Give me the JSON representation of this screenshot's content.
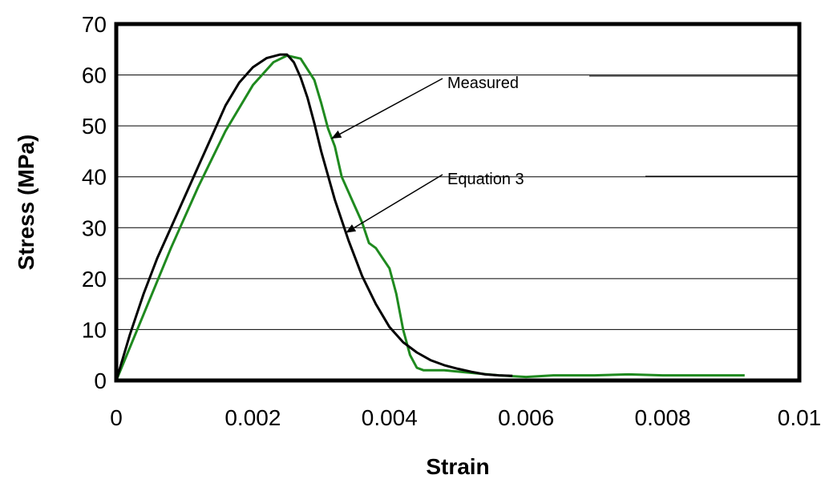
{
  "chart_data": {
    "type": "line",
    "title": "",
    "xlabel": "Strain",
    "ylabel": "Stress (MPa)",
    "xlim": [
      0,
      0.01
    ],
    "ylim": [
      0,
      70
    ],
    "xticks": [
      "0",
      "0.002",
      "0.004",
      "0.006",
      "0.008",
      "0.01"
    ],
    "yticks": [
      "0",
      "10",
      "20",
      "30",
      "40",
      "50",
      "60",
      "70"
    ],
    "grid": "horizontal",
    "legend": "none",
    "series": [
      {
        "name": "Measured",
        "color": "#1f8a1f",
        "x": [
          0,
          0.0004,
          0.0008,
          0.0012,
          0.0016,
          0.002,
          0.0023,
          0.0025,
          0.0027,
          0.0029,
          0.003,
          0.0031,
          0.0032,
          0.0033,
          0.0035,
          0.0036,
          0.0037,
          0.0038,
          0.0039,
          0.004,
          0.0041,
          0.0042,
          0.0043,
          0.0044,
          0.0045,
          0.0046,
          0.0048,
          0.0052,
          0.0056,
          0.006,
          0.0064,
          0.007,
          0.0075,
          0.008,
          0.0092
        ],
        "y": [
          0,
          13,
          26,
          38,
          49,
          58,
          62.5,
          63.8,
          63.2,
          59,
          54.5,
          49.5,
          46,
          40,
          34,
          31,
          27,
          26,
          24,
          22,
          17,
          10,
          5,
          2.5,
          2,
          2,
          2,
          1.5,
          1,
          0.7,
          1,
          1,
          1.2,
          1,
          1
        ]
      },
      {
        "name": "Equation 3",
        "color": "#000000",
        "x": [
          0,
          0.0002,
          0.0004,
          0.0006,
          0.0008,
          0.001,
          0.0012,
          0.0014,
          0.0016,
          0.0018,
          0.002,
          0.0022,
          0.0024,
          0.0025,
          0.0026,
          0.0027,
          0.0028,
          0.0029,
          0.003,
          0.0032,
          0.0034,
          0.0036,
          0.0038,
          0.004,
          0.0042,
          0.0044,
          0.0046,
          0.0048,
          0.005,
          0.0052,
          0.0054,
          0.0056,
          0.0058
        ],
        "y": [
          0,
          9,
          17,
          24,
          30,
          36,
          42,
          48,
          54,
          58.5,
          61.5,
          63.3,
          64,
          64,
          62.5,
          59.5,
          55.5,
          50.5,
          45,
          35.5,
          27.5,
          20.5,
          15,
          10.5,
          7.5,
          5.5,
          4,
          3,
          2.3,
          1.7,
          1.2,
          1,
          0.9
        ]
      }
    ],
    "annotations": [
      {
        "text": "Measured",
        "arrow_to": [
          0.00315,
          47.5
        ]
      },
      {
        "text": "Equation 3",
        "arrow_to": [
          0.00336,
          29
        ]
      }
    ]
  }
}
